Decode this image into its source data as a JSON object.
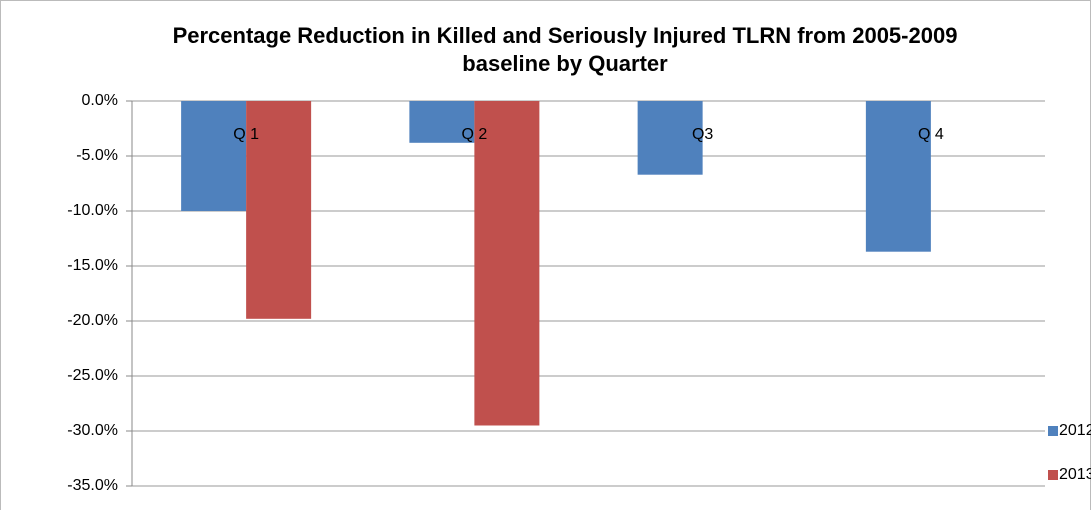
{
  "chart_data": {
    "type": "bar",
    "title": "Percentage Reduction in Killed and Seriously Injured TLRN from 2005-2009 baseline by Quarter",
    "categories": [
      "Q 1",
      "Q 2",
      "Q3",
      "Q 4"
    ],
    "series": [
      {
        "name": "2012",
        "color": "#4f81bd",
        "values": [
          -10.0,
          -3.8,
          -6.7,
          -13.7
        ]
      },
      {
        "name": "2013",
        "color": "#c0504d",
        "values": [
          -19.8,
          -29.5,
          null,
          null
        ]
      }
    ],
    "ylim": [
      -35,
      0
    ],
    "yticks": [
      {
        "value": 0,
        "label": "0.0%"
      },
      {
        "value": -5,
        "label": "-5.0%"
      },
      {
        "value": -10,
        "label": "-10.0%"
      },
      {
        "value": -15,
        "label": "-15.0%"
      },
      {
        "value": -20,
        "label": "-20.0%"
      },
      {
        "value": -25,
        "label": "-25.0%"
      },
      {
        "value": -30,
        "label": "-30.0%"
      },
      {
        "value": -35,
        "label": "-35.0%"
      }
    ],
    "grid": true,
    "legend": "right"
  }
}
